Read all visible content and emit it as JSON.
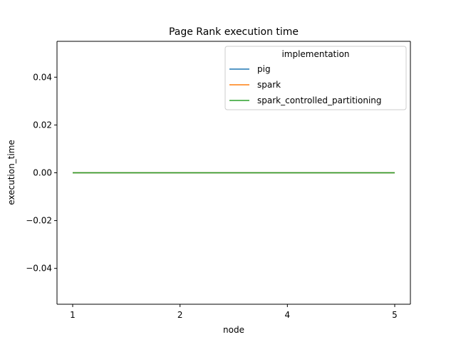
{
  "chart_data": {
    "type": "line",
    "title": "Page Rank execution time",
    "xlabel": "node",
    "ylabel": "execution_time",
    "categories": [
      "1",
      "2",
      "4",
      "5"
    ],
    "ylim": [
      -0.055,
      0.055
    ],
    "yticks": [
      -0.04,
      -0.02,
      0.0,
      0.02,
      0.04
    ],
    "ytick_labels": [
      "−0.04",
      "−0.02",
      "0.00",
      "0.02",
      "0.04"
    ],
    "grid": false,
    "legend": {
      "title": "implementation",
      "placement": "upper-right"
    },
    "series": [
      {
        "name": "pig",
        "values": [
          0,
          0,
          0,
          0
        ],
        "color": "#1f77b4"
      },
      {
        "name": "spark",
        "values": [
          0,
          0,
          0,
          0
        ],
        "color": "#ff7f0e"
      },
      {
        "name": "spark_controlled_partitioning",
        "values": [
          0,
          0,
          0,
          0
        ],
        "color": "#2ca02c"
      }
    ]
  }
}
